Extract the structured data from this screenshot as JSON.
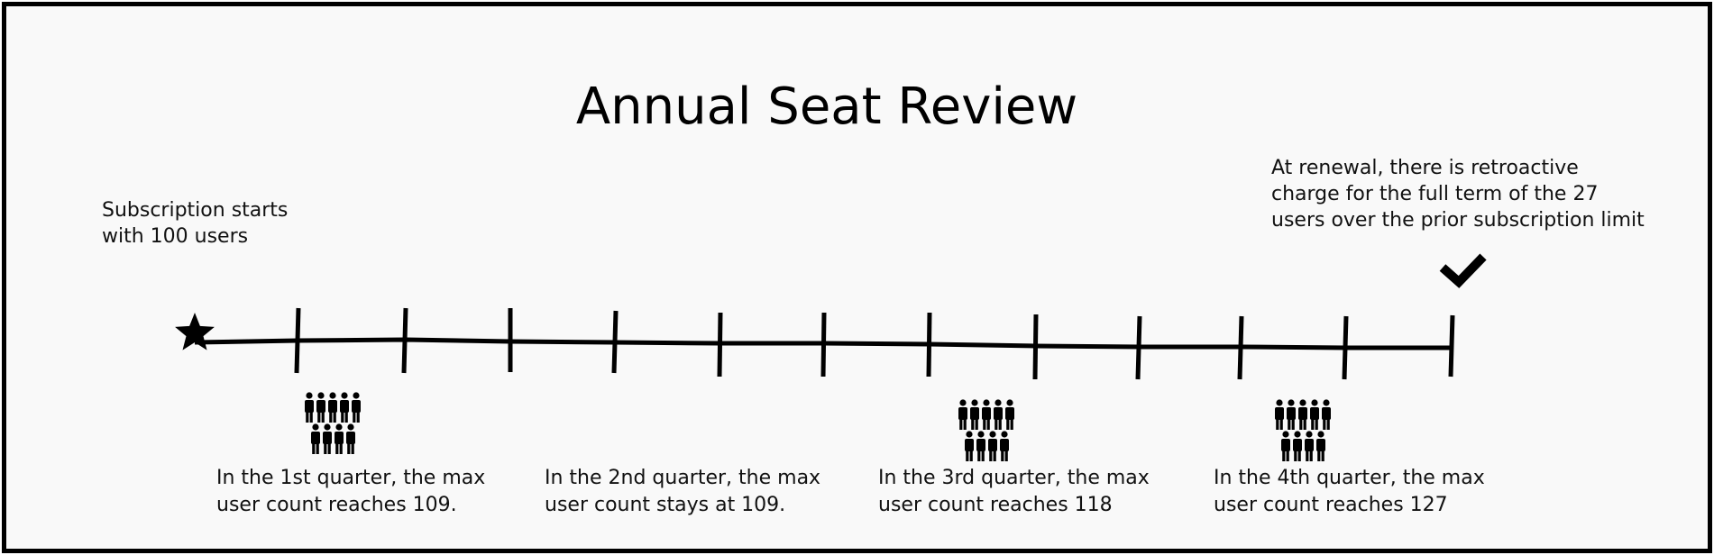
{
  "title": "Annual Seat Review",
  "start_note": [
    "Subscription starts",
    "with 100 users"
  ],
  "renewal_note": [
    "At renewal, there is retroactive",
    "charge for the full term of the 27",
    "users over the prior subscription limit"
  ],
  "quarters": [
    {
      "name": "q1",
      "lines": [
        "In the 1st quarter, the max",
        "user count reaches 109."
      ],
      "people_rows": [
        5,
        4
      ]
    },
    {
      "name": "q2",
      "lines": [
        "In the 2nd quarter, the max",
        "user count stays at 109."
      ],
      "people_rows": []
    },
    {
      "name": "q3",
      "lines": [
        "In the 3rd quarter, the max",
        "user count reaches 118"
      ],
      "people_rows": [
        5,
        4
      ]
    },
    {
      "name": "q4",
      "lines": [
        "In the 4th quarter, the max",
        "user count reaches 127"
      ],
      "people_rows": [
        5,
        4
      ]
    }
  ],
  "icons": {
    "start": "star-icon",
    "end": "check-icon",
    "people": "person-icon"
  },
  "colors": {
    "ink": "#000000",
    "background": "#f9f9f9",
    "border": "#000000"
  }
}
